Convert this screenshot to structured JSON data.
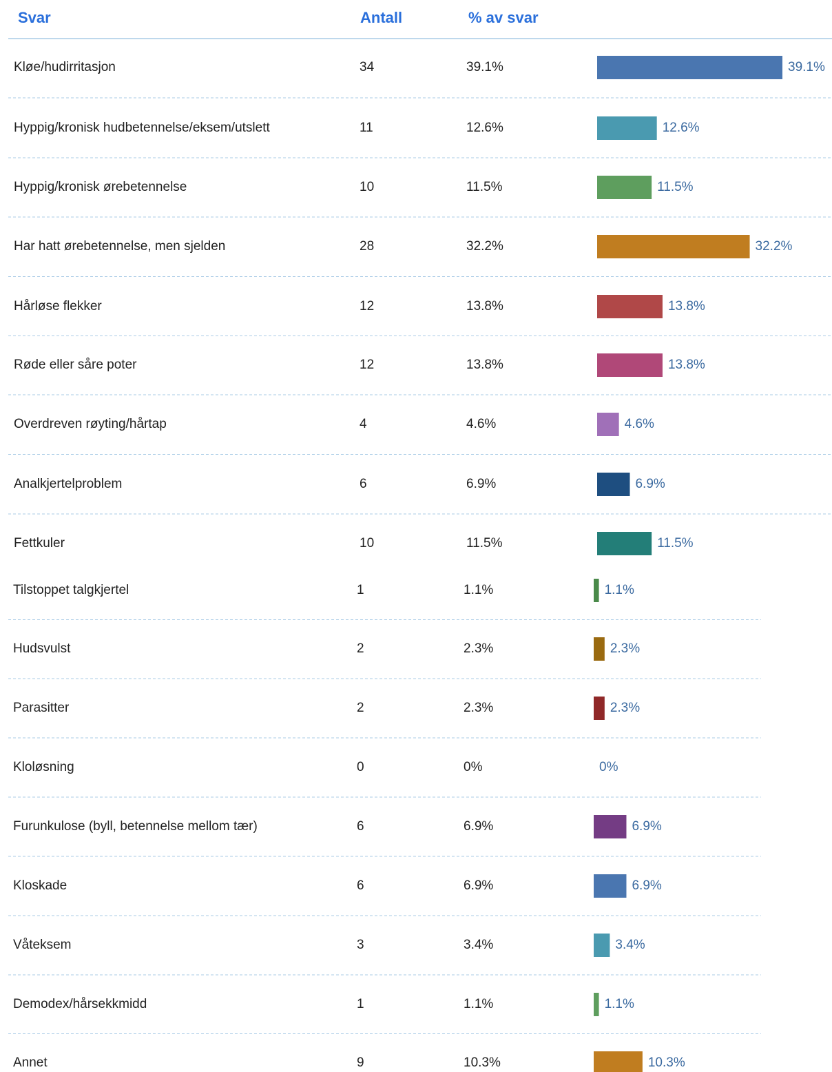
{
  "chart_data": {
    "type": "bar",
    "columns": [
      "Svar",
      "Antall",
      "% av svar"
    ],
    "categories": [
      "Kløe/hudirritasjon",
      "Hyppig/kronisk hudbetennelse/eksem/utslett",
      "Hyppig/kronisk ørebetennelse",
      "Har hatt ørebetennelse, men sjelden",
      "Hårløse flekker",
      "Røde eller såre poter",
      "Overdreven røyting/hårtap",
      "Analkjertelproblem",
      "Fettkuler",
      "Tilstoppet talgkjertel",
      "Hudsvulst",
      "Parasitter",
      "Kloløsning",
      "Furunkulose (byll, betennelse mellom tær)",
      "Kloskade",
      "Våteksem",
      "Demodex/hårsekkmidd",
      "Annet"
    ],
    "counts": [
      34,
      11,
      10,
      28,
      12,
      12,
      4,
      6,
      10,
      1,
      2,
      2,
      0,
      6,
      6,
      3,
      1,
      9
    ],
    "values": [
      39.1,
      12.6,
      11.5,
      32.2,
      13.8,
      13.8,
      4.6,
      6.9,
      11.5,
      1.1,
      2.3,
      2.3,
      0,
      6.9,
      6.9,
      3.4,
      1.1,
      10.3
    ],
    "value_labels": [
      "39.1%",
      "12.6%",
      "11.5%",
      "32.2%",
      "13.8%",
      "13.8%",
      "4.6%",
      "6.9%",
      "11.5%",
      "1.1%",
      "2.3%",
      "2.3%",
      "0%",
      "6.9%",
      "6.9%",
      "3.4%",
      "1.1%",
      "10.3%"
    ],
    "colors": [
      "#4a76b0",
      "#4a9ab0",
      "#5e9e5e",
      "#c07d20",
      "#b04848",
      "#b04878",
      "#a070b8",
      "#1e4e80",
      "#237e78",
      "#4a8a4a",
      "#9a6a10",
      "#902828",
      null,
      "#743c84",
      "#4a76b0",
      "#4a9ab0",
      "#5e9e5e",
      "#c07d20"
    ]
  }
}
